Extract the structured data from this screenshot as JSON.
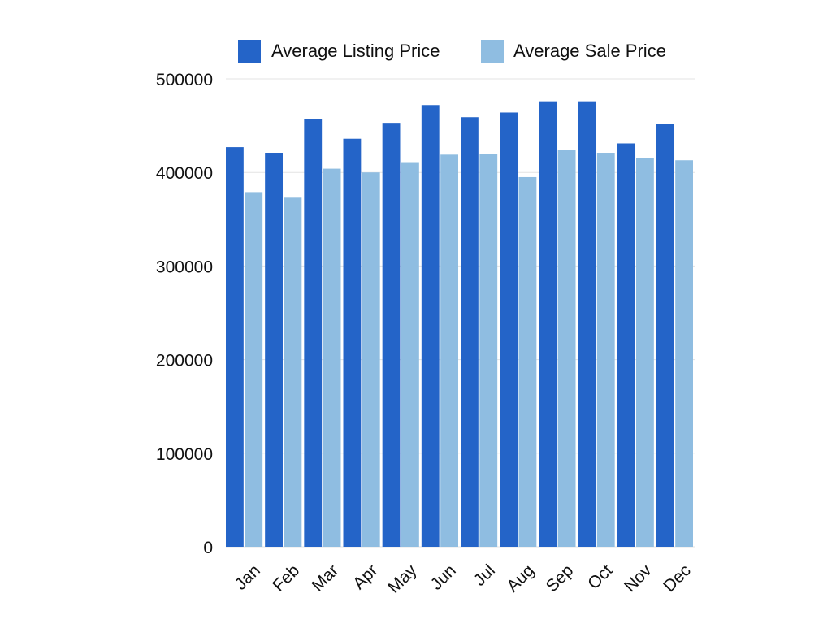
{
  "chart_data": {
    "type": "bar",
    "title": "",
    "xlabel": "",
    "ylabel": "",
    "ylim": [
      0,
      500000
    ],
    "yticks": [
      0,
      100000,
      200000,
      300000,
      400000,
      500000
    ],
    "grid": true,
    "legend_position": "top",
    "categories": [
      "Jan",
      "Feb",
      "Mar",
      "Apr",
      "May",
      "Jun",
      "Jul",
      "Aug",
      "Sep",
      "Oct",
      "Nov",
      "Dec"
    ],
    "series": [
      {
        "name": "Average Listing Price",
        "color": "#2464c8",
        "values": [
          427000,
          421000,
          457000,
          436000,
          453000,
          472000,
          459000,
          464000,
          476000,
          476000,
          431000,
          452000
        ]
      },
      {
        "name": "Average Sale Price",
        "color": "#8fbde1",
        "values": [
          379000,
          373000,
          404000,
          400000,
          411000,
          419000,
          420000,
          395000,
          424000,
          421000,
          415000,
          413000
        ]
      }
    ]
  }
}
